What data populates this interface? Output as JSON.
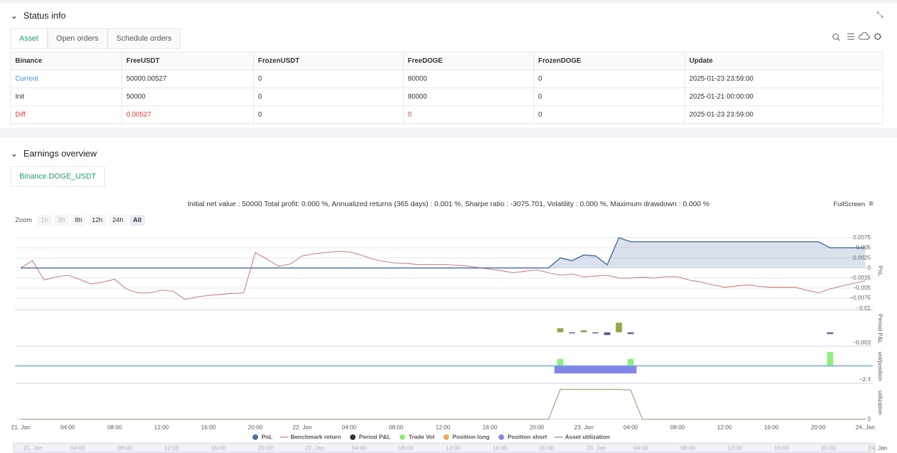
{
  "status_info": {
    "title": "Status info",
    "tabs": [
      "Asset",
      "Open orders",
      "Schedule orders"
    ],
    "table": {
      "header": [
        "Binance",
        "FreeUSDT",
        "FrozenUSDT",
        "FreeDOGE",
        "FrozenDOGE",
        "Update"
      ],
      "rows": [
        [
          "Current",
          "50000.00527",
          "0",
          "80000",
          "0",
          "2025-01-23 23:59:00"
        ],
        [
          "Init",
          "50000",
          "0",
          "80000",
          "0",
          "2025-01-21 00:00:00"
        ],
        [
          "Diff",
          "0.00527",
          "0",
          "0",
          "0",
          "2025-01-23 23:59:00"
        ]
      ]
    }
  },
  "earnings_overview": {
    "title": "Earnings overview",
    "tabs": [
      "Binance.DOGE_USDT"
    ],
    "summary": "Initial net value : 50000 Total profit: 0.000 %, Annualized returns (365 days) : 0.001 %, Sharpe ratio : -3075.701, Volatility : 0.000 %, Maximum drawdown : 0.000 %",
    "fullscreen": "FullScreen",
    "zoom_label": "Zoom",
    "zoom_buttons": [
      "1h",
      "3h",
      "8h",
      "12h",
      "24h",
      "All"
    ]
  },
  "chart_data": {
    "type": "line",
    "x_tick_labels": [
      "21. Jan",
      "04:00",
      "08:00",
      "12:00",
      "16:00",
      "20:00",
      "22. Jan",
      "04:00",
      "08:00",
      "12:00",
      "16:00",
      "20:00",
      "23. Jan",
      "04:00",
      "08:00",
      "12:00",
      "16:00",
      "20:00",
      "24. Jan"
    ],
    "panels": [
      {
        "y_label": "PnL",
        "ylim": [
          -0.0105,
          0.009
        ],
        "grid": true,
        "yticks": [
          0.0075,
          0.005,
          0.0025,
          0,
          {
            "value": -0.0025,
            "label": "−0.0025"
          },
          {
            "value": -0.005,
            "label": "−0.005"
          },
          {
            "value": -0.0075,
            "label": "−0.0075"
          },
          {
            "value": -0.01,
            "label": "−0.01"
          }
        ]
      },
      {
        "y_label": "Period P&L",
        "ylim": [
          -0.004,
          0.006
        ],
        "yticks": [
          {
            "value": -0.003,
            "label": "−0.003"
          }
        ]
      },
      {
        "y_label": "vol/position",
        "ylim": [
          -3,
          2.8
        ],
        "yticks": [
          {
            "value": -2.4,
            "label": "−2.4"
          }
        ]
      },
      {
        "y_label": "utilization",
        "ylim": [
          0,
          1
        ],
        "yticks": [
          0
        ]
      }
    ],
    "series": [
      {
        "name": "PnL",
        "color": "#4a6fa5",
        "panel": 0,
        "kind": "area",
        "values": [
          0,
          0,
          0,
          0,
          0,
          0,
          0,
          0,
          0,
          0,
          0,
          0,
          0,
          0,
          0,
          0,
          0,
          0,
          0,
          0,
          0,
          0,
          0,
          0,
          0,
          0,
          0,
          0,
          0,
          0,
          0,
          0,
          0,
          0,
          0,
          0,
          0,
          0,
          0,
          0,
          0,
          0,
          0,
          0,
          0,
          0,
          0.0025,
          0.0018,
          0.0032,
          0.003,
          0.0008,
          0.0075,
          0.0065,
          0.0065,
          0.0065,
          0.0065,
          0.0065,
          0.0065,
          0.0065,
          0.0065,
          0.0065,
          0.0065,
          0.0065,
          0.0065,
          0.0065,
          0.0065,
          0.0065,
          0.0065,
          0.0065,
          0.005,
          0.005,
          0.005,
          0.005
        ]
      },
      {
        "name": "Benchmark return",
        "color": "#c0504d",
        "panel": 0,
        "kind": "line",
        "values": [
          0,
          0.0018,
          -0.003,
          -0.0022,
          -0.0018,
          -0.0028,
          -0.004,
          -0.0035,
          -0.0028,
          -0.0052,
          -0.0062,
          -0.0062,
          -0.0055,
          -0.0058,
          -0.0078,
          -0.0072,
          -0.0068,
          -0.0066,
          -0.0063,
          -0.0062,
          0.0038,
          0.0022,
          0.0004,
          0.001,
          0.003,
          0.0035,
          0.0038,
          0.0041,
          0.004,
          0.0032,
          0.0022,
          0.0016,
          0.0012,
          0.0011,
          0.0008,
          0.0009,
          0.0009,
          0.0007,
          0.0005,
          0.0001,
          -0.0003,
          -0.0007,
          -0.0012,
          -0.0008,
          -0.0005,
          -0.0012,
          -0.0018,
          -0.0015,
          -0.0022,
          -0.002,
          -0.0018,
          -0.0025,
          -0.0025,
          -0.0023,
          -0.0025,
          -0.0022,
          -0.0022,
          -0.003,
          -0.0035,
          -0.0042,
          -0.0048,
          -0.0045,
          -0.0042,
          -0.0046,
          -0.0048,
          -0.0048,
          -0.0048,
          -0.0055,
          -0.0062,
          -0.0052,
          -0.0045,
          -0.0038,
          -0.0032
        ]
      },
      {
        "name": "Period P&L",
        "color": "#333333",
        "up_color": "#8faa4c",
        "down_color": "#6e5a8f",
        "panel": 1,
        "kind": "bar",
        "values": [
          null,
          null,
          null,
          null,
          null,
          null,
          null,
          null,
          null,
          null,
          null,
          null,
          null,
          null,
          null,
          null,
          null,
          null,
          null,
          null,
          null,
          null,
          null,
          null,
          null,
          null,
          null,
          null,
          null,
          null,
          null,
          null,
          null,
          null,
          null,
          null,
          null,
          null,
          null,
          null,
          null,
          null,
          null,
          null,
          null,
          null,
          0.0012,
          -0.0003,
          0.0006,
          -0.0001,
          -0.0008,
          0.0028,
          -0.0005,
          null,
          null,
          null,
          null,
          null,
          null,
          null,
          null,
          null,
          null,
          null,
          null,
          null,
          null,
          null,
          null,
          -0.0005,
          null,
          null,
          null
        ]
      },
      {
        "name": "Trade Vol",
        "color": "#90ed7d",
        "panel": 2,
        "kind": "bar",
        "values": [
          null,
          null,
          null,
          null,
          null,
          null,
          null,
          null,
          null,
          null,
          null,
          null,
          null,
          null,
          null,
          null,
          null,
          null,
          null,
          null,
          null,
          null,
          null,
          null,
          null,
          null,
          null,
          null,
          null,
          null,
          null,
          null,
          null,
          null,
          null,
          null,
          null,
          null,
          null,
          null,
          null,
          null,
          null,
          null,
          null,
          null,
          1.2,
          null,
          null,
          null,
          null,
          null,
          1.2,
          null,
          null,
          null,
          null,
          null,
          null,
          null,
          null,
          null,
          null,
          null,
          null,
          null,
          null,
          null,
          null,
          2.4,
          null,
          null,
          null
        ]
      },
      {
        "name": "Position long",
        "color": "#f7a35c",
        "panel": 2,
        "kind": "bar"
      },
      {
        "name": "Position short",
        "color": "#8085e9",
        "panel": 2,
        "kind": "block",
        "values": [
          null,
          null,
          null,
          null,
          null,
          null,
          null,
          null,
          null,
          null,
          null,
          null,
          null,
          null,
          null,
          null,
          null,
          null,
          null,
          null,
          null,
          null,
          null,
          null,
          null,
          null,
          null,
          null,
          null,
          null,
          null,
          null,
          null,
          null,
          null,
          null,
          null,
          null,
          null,
          null,
          null,
          null,
          null,
          null,
          null,
          null,
          -1.3,
          -1.3,
          -1.3,
          -1.3,
          -1.3,
          -1.3,
          -1.3,
          null,
          null,
          null,
          null,
          null,
          null,
          null,
          null,
          null,
          null,
          null,
          null,
          null,
          null,
          null,
          null,
          null,
          null,
          null,
          null
        ]
      },
      {
        "name": "Asset utilization",
        "color": "#6b7a3a",
        "panel": 3,
        "kind": "line",
        "values": [
          0,
          0,
          0,
          0,
          0,
          0,
          0,
          0,
          0,
          0,
          0,
          0,
          0,
          0,
          0,
          0,
          0,
          0,
          0,
          0,
          0,
          0,
          0,
          0,
          0,
          0,
          0,
          0,
          0,
          0,
          0,
          0,
          0,
          0,
          0,
          0,
          0,
          0,
          0,
          0,
          0,
          0,
          0,
          0,
          0,
          0,
          0.9,
          0.9,
          0.9,
          0.9,
          0.9,
          0.9,
          0.88,
          0,
          0,
          0,
          0,
          0,
          0,
          0,
          0,
          0,
          0,
          0,
          0,
          0,
          0,
          0,
          0,
          0,
          0,
          0,
          0
        ]
      }
    ]
  }
}
